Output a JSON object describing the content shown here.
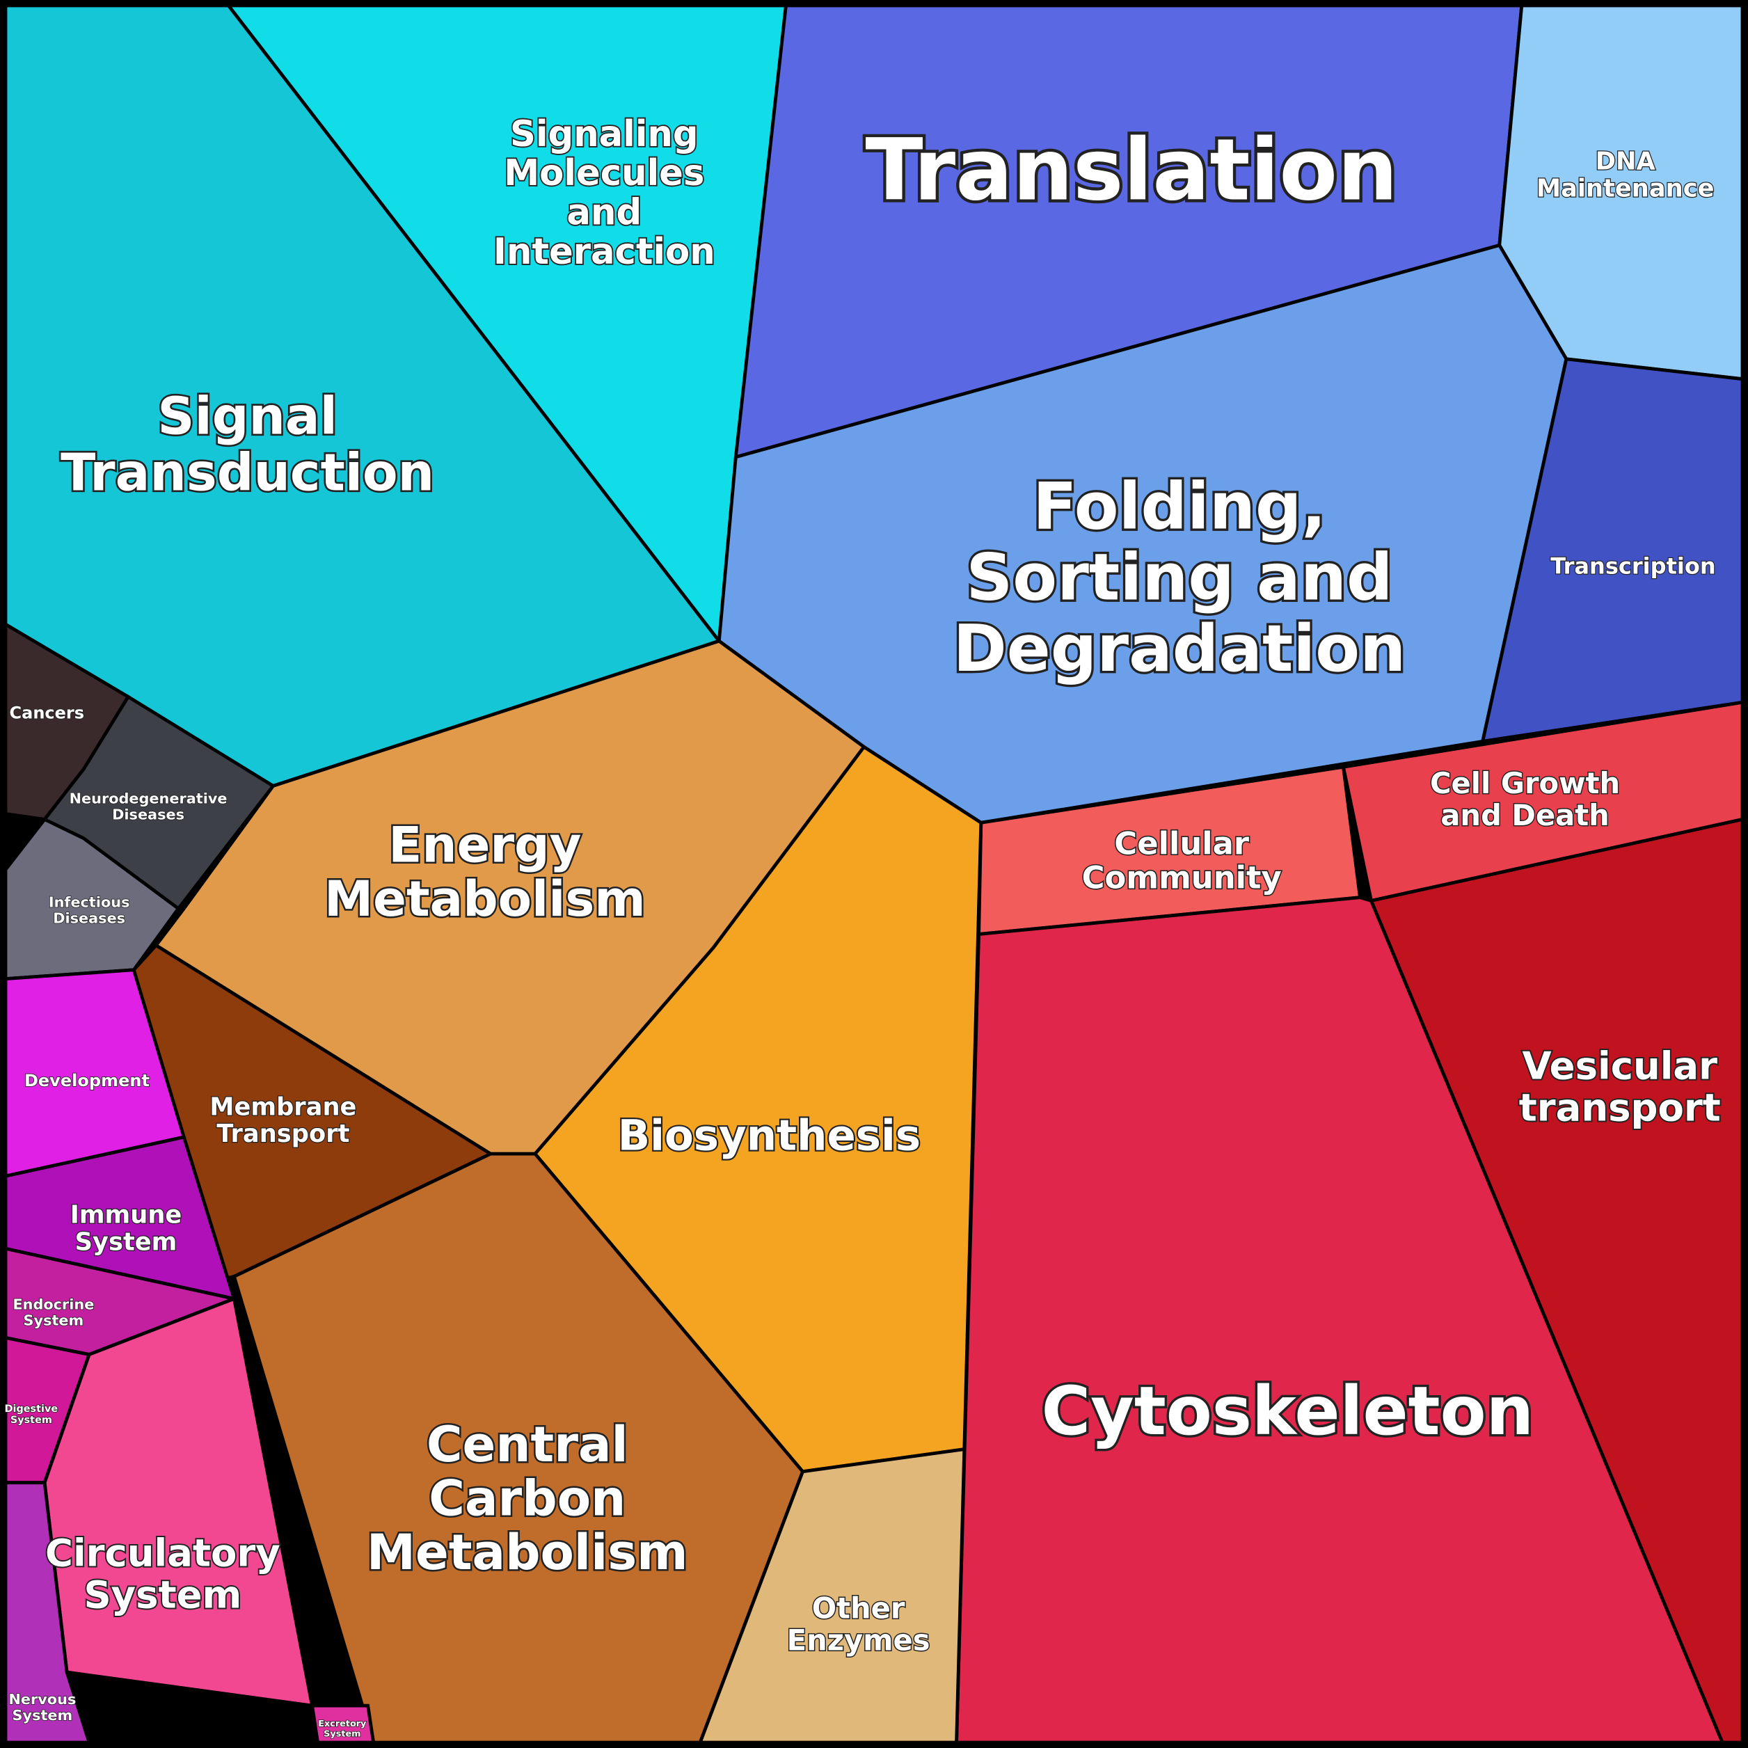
{
  "regions": [
    {
      "label": [
        "Signal",
        "Transduction"
      ]
    },
    {
      "label": [
        "Signaling",
        "Molecules",
        "and",
        "Interaction"
      ]
    },
    {
      "label": [
        "Translation"
      ]
    },
    {
      "label": [
        "DNA",
        "Maintenance"
      ]
    },
    {
      "label": [
        "Folding,",
        "Sorting and",
        "Degradation"
      ]
    },
    {
      "label": [
        "Transcription"
      ]
    },
    {
      "label": [
        "Cellular",
        "Community"
      ]
    },
    {
      "label": [
        "Cell Growth",
        "and Death"
      ]
    },
    {
      "label": [
        "Vesicular",
        "transport"
      ]
    },
    {
      "label": [
        "Cytoskeleton"
      ]
    },
    {
      "label": [
        "Energy",
        "Metabolism"
      ]
    },
    {
      "label": [
        "Biosynthesis"
      ]
    },
    {
      "label": [
        "Other",
        "Enzymes"
      ]
    },
    {
      "label": [
        "Central",
        "Carbon",
        "Metabolism"
      ]
    },
    {
      "label": [
        "Membrane",
        "Transport"
      ]
    },
    {
      "label": [
        "Cancers"
      ]
    },
    {
      "label": [
        "Neurodegenerative",
        "Diseases"
      ]
    },
    {
      "label": [
        "Infectious",
        "Diseases"
      ]
    },
    {
      "label": [
        "Development"
      ]
    },
    {
      "label": [
        "Immune",
        "System"
      ]
    },
    {
      "label": [
        "Endocrine",
        "System"
      ]
    },
    {
      "label": [
        "Digestive",
        "System"
      ]
    },
    {
      "label": [
        "Circulatory",
        "System"
      ]
    },
    {
      "label": [
        "Nervous",
        "System"
      ]
    },
    {
      "label": [
        "Excretory",
        "System"
      ]
    }
  ]
}
